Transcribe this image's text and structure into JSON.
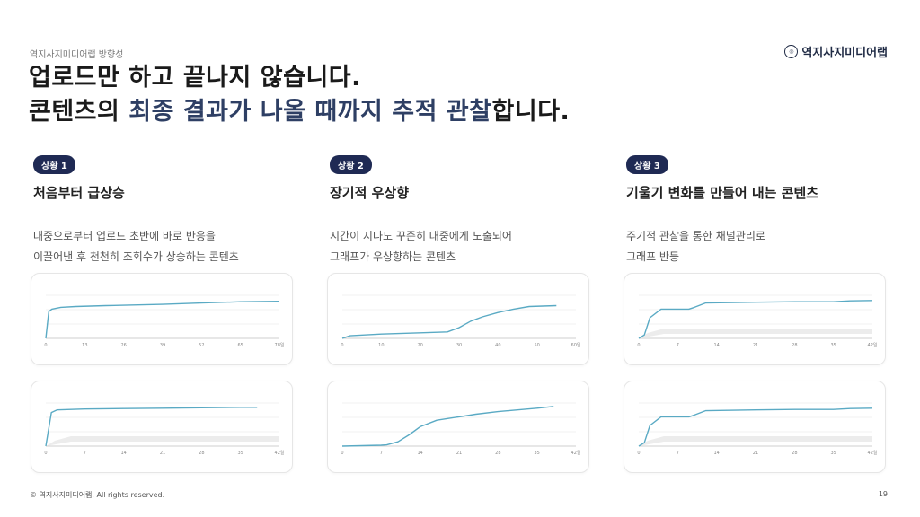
{
  "header": {
    "eyebrow": "역지사지미디어랩 방향성",
    "logo_text": "역지사지미디어랩",
    "logo_icon": "circle-logo-icon",
    "headline_line1": "업로드만 하고 끝나지 않습니다.",
    "headline_line2_prefix": "콘텐츠의 ",
    "headline_line2_highlight": "최종 결과가 나올 때까지 추적 관찰",
    "headline_line2_suffix": "합니다.",
    "highlight_color": "#2e3f64"
  },
  "columns": [
    {
      "badge": "상황 1",
      "title": "처음부터 급상승",
      "desc_line1": "대중으로부터 업로드 초반에 바로 반응을",
      "desc_line2": "이끌어낸 후 천천히 조회수가 상승하는 콘텐츠"
    },
    {
      "badge": "상황 2",
      "title": "장기적 우상향",
      "desc_line1": "시간이 지나도 꾸준히 대중에게 노출되어",
      "desc_line2": "그래프가 우상향하는 콘텐츠"
    },
    {
      "badge": "상황 3",
      "title": "기울기 변화를 만들어 내는 콘텐츠",
      "desc_line1": "주기적 관찰을 통한 채널관리로",
      "desc_line2": "그래프 반등"
    }
  ],
  "chart_data": [
    {
      "type": "line",
      "title": "상황 1 차트 A",
      "x_ticks": [
        "0",
        "13",
        "26",
        "39",
        "52",
        "65",
        "78일"
      ],
      "x": [
        0,
        1,
        2,
        5,
        10,
        20,
        39,
        52,
        65,
        78
      ],
      "values": [
        0,
        62,
        68,
        72,
        74,
        76,
        79,
        82,
        85,
        86
      ],
      "ylim": [
        0,
        100
      ],
      "band": false
    },
    {
      "type": "line",
      "title": "상황 2 차트 A",
      "x_ticks": [
        "0",
        "10",
        "20",
        "30",
        "40",
        "50",
        "60일"
      ],
      "x": [
        0,
        2,
        10,
        20,
        27,
        30,
        33,
        36,
        40,
        44,
        48,
        55
      ],
      "values": [
        0,
        6,
        10,
        13,
        15,
        25,
        40,
        50,
        60,
        68,
        74,
        76
      ],
      "ylim": [
        0,
        100
      ],
      "band": false
    },
    {
      "type": "line",
      "title": "상황 3 차트 A",
      "x_ticks": [
        "0",
        "7",
        "14",
        "21",
        "28",
        "35",
        "42일"
      ],
      "x": [
        0,
        1,
        2,
        4,
        9,
        10,
        12,
        21,
        28,
        35,
        38,
        42
      ],
      "values": [
        0,
        8,
        48,
        68,
        68,
        72,
        82,
        84,
        85,
        85,
        87,
        88
      ],
      "ylim": [
        0,
        100
      ],
      "band": true
    },
    {
      "type": "line",
      "title": "상황 1 차트 B",
      "x_ticks": [
        "0",
        "7",
        "14",
        "21",
        "28",
        "35",
        "42일"
      ],
      "x": [
        0,
        1,
        2,
        7,
        14,
        21,
        28,
        35,
        38
      ],
      "values": [
        0,
        78,
        84,
        86,
        87,
        88,
        89,
        90,
        90
      ],
      "ylim": [
        0,
        100
      ],
      "band": true
    },
    {
      "type": "line",
      "title": "상황 2 차트 B",
      "x_ticks": [
        "0",
        "7",
        "14",
        "21",
        "28",
        "35",
        "42일"
      ],
      "x": [
        0,
        7,
        8,
        10,
        12,
        14,
        17,
        21,
        24,
        28,
        35,
        38
      ],
      "values": [
        0,
        2,
        3,
        10,
        26,
        45,
        60,
        68,
        74,
        80,
        88,
        92
      ],
      "ylim": [
        0,
        100
      ],
      "band": false
    },
    {
      "type": "line",
      "title": "상황 3 차트 B",
      "x_ticks": [
        "0",
        "7",
        "14",
        "21",
        "28",
        "35",
        "42일"
      ],
      "x": [
        0,
        1,
        2,
        4,
        9,
        10,
        12,
        21,
        28,
        35,
        38,
        42
      ],
      "values": [
        0,
        8,
        48,
        68,
        68,
        72,
        82,
        84,
        85,
        85,
        87,
        88
      ],
      "ylim": [
        0,
        100
      ],
      "band": true
    }
  ],
  "footer": {
    "copyright": "© 역지사지미디어랩. All rights reserved.",
    "page_number": "19"
  }
}
